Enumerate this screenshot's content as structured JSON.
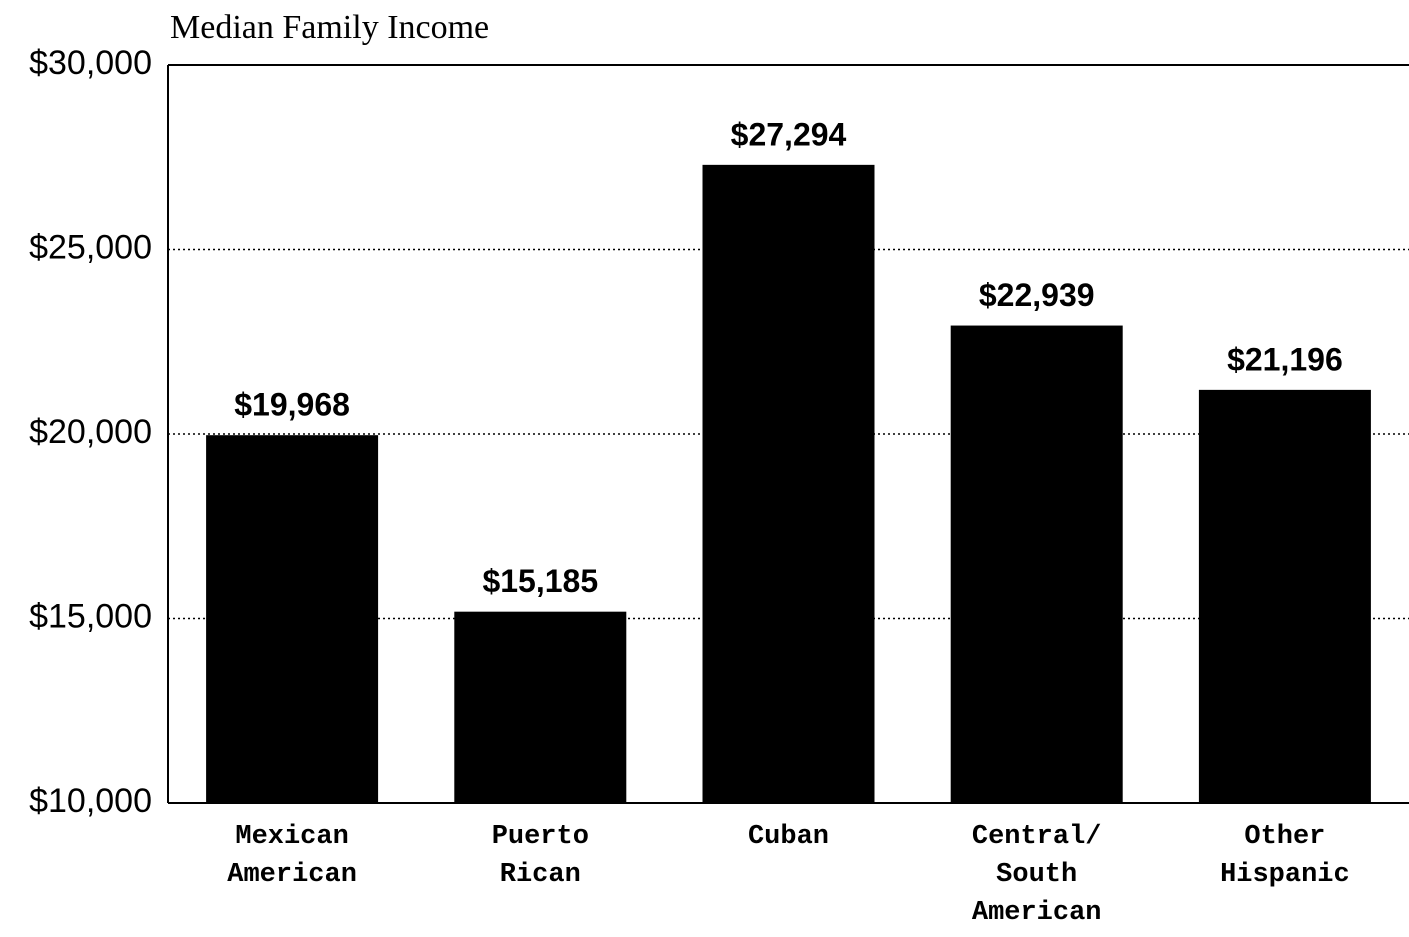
{
  "chart_data": {
    "type": "bar",
    "title": "Median Family Income",
    "categories": [
      "Mexican American",
      "Puerto Rican",
      "Cuban",
      "Central/ South American",
      "Other Hispanic"
    ],
    "values": [
      19968,
      15185,
      27294,
      22939,
      21196
    ],
    "value_labels": [
      "$19,968",
      "$15,185",
      "$27,294",
      "$22,939",
      "$21,196"
    ],
    "color": "#000000",
    "ylim": [
      10000,
      30000
    ],
    "yticks": [
      {
        "value": 10000,
        "label": "$10,000"
      },
      {
        "value": 15000,
        "label": "$15,000"
      },
      {
        "value": 20000,
        "label": "$20,000"
      },
      {
        "value": 25000,
        "label": "$25,000"
      },
      {
        "value": 30000,
        "label": "$30,000"
      }
    ],
    "grid": true
  }
}
